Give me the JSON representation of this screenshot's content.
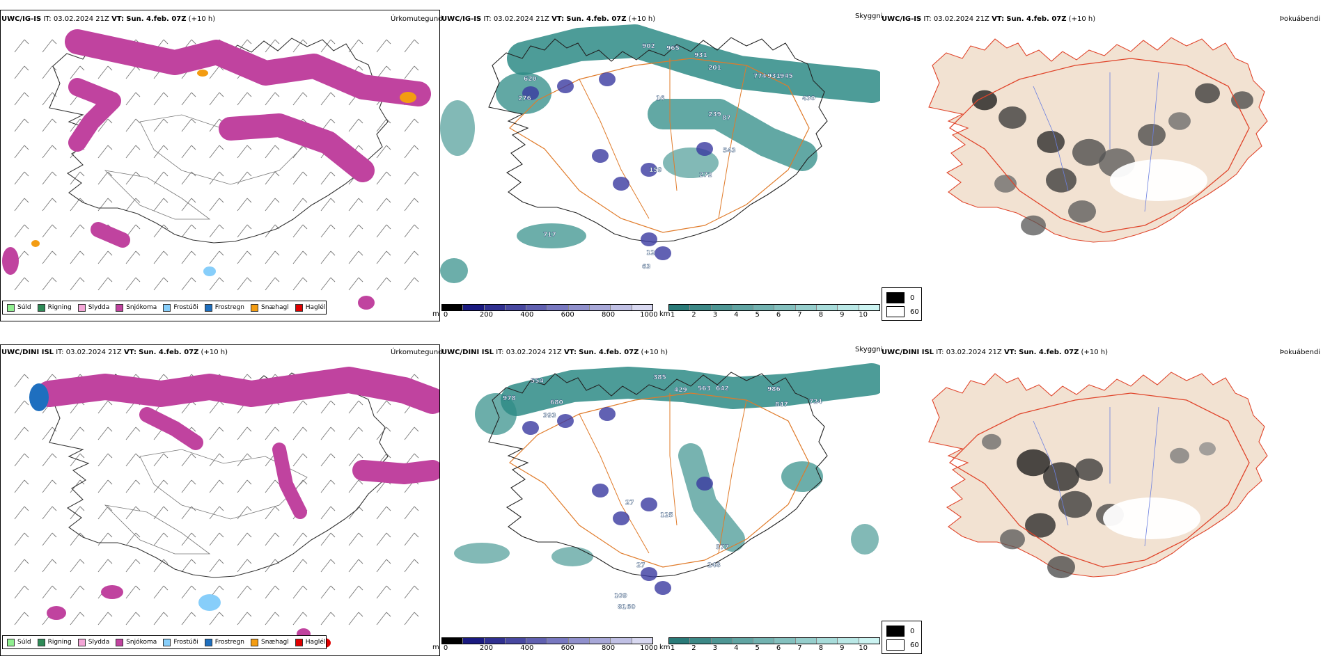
{
  "rows": [
    {
      "model": "UWC/IG-IS",
      "it_prefix": "IT:",
      "it": "03.02.2024 21Z",
      "vt_prefix": "VT:",
      "vt": "Sun. 4.feb. 07Z",
      "lead": "(+10 h)",
      "precip_title": "Úrkomutegund",
      "cloud_title": "Skyggni",
      "fog_title": "Þokuábendi",
      "cloud_labels": [
        "902",
        "965",
        "931",
        "201",
        "774",
        "931",
        "945",
        "620",
        "276",
        "16",
        "239",
        "87",
        "543",
        "159",
        "272",
        "717",
        "12",
        "63",
        "430"
      ]
    },
    {
      "model": "UWC/DINI ISL",
      "it_prefix": "IT:",
      "it": "03.02.2024 21Z",
      "vt_prefix": "VT:",
      "vt": "Sun. 4.feb. 07Z",
      "lead": "(+10 h)",
      "precip_title": "Úrkomutegund",
      "cloud_title": "Skyggni",
      "fog_title": "Þokuábendi",
      "cloud_labels": [
        "554",
        "978",
        "393",
        "680",
        "385",
        "429",
        "563",
        "642",
        "986",
        "847",
        "724",
        "27",
        "125",
        "377",
        "248",
        "60",
        "81",
        "109",
        "27"
      ]
    }
  ],
  "precip_legend": [
    {
      "label": "Súld",
      "color": "#90ee90"
    },
    {
      "label": "Rigning",
      "color": "#2e8b57"
    },
    {
      "label": "Slydda",
      "color": "#f4a6d7"
    },
    {
      "label": "Snjókoma",
      "color": "#c0439f"
    },
    {
      "label": "Frostúði",
      "color": "#87cefa"
    },
    {
      "label": "Frostregn",
      "color": "#1e6fbf"
    },
    {
      "label": "Snæhagl",
      "color": "#f39c12"
    },
    {
      "label": "Haglél",
      "color": "#e00000"
    }
  ],
  "ceiling_scale": {
    "unit": "m",
    "ticks": [
      "0",
      "200",
      "400",
      "600",
      "800",
      "1000"
    ],
    "colors": [
      "#000000",
      "#1a1a80",
      "#303090",
      "#4848a0",
      "#6060b0",
      "#7878c0",
      "#9090cc",
      "#a8a8d8",
      "#c0c0e4",
      "#d8d8f0"
    ]
  },
  "visibility_scale": {
    "unit": "km",
    "ticks": [
      "1",
      "2",
      "3",
      "4",
      "5",
      "6",
      "7",
      "8",
      "9",
      "10"
    ],
    "colors": [
      "#2a7a78",
      "#3c8886",
      "#4e9694",
      "#60a4a2",
      "#72b2b0",
      "#84c0be",
      "#96cecc",
      "#a8dcda",
      "#bae8e6",
      "#ccf4f2"
    ]
  },
  "fog_legend": [
    {
      "label": "0",
      "color": "#000000"
    },
    {
      "label": "60",
      "color": "#ffffff"
    }
  ],
  "colors": {
    "snow": "#c0439f",
    "sleet": "#f39c12",
    "teal": "#2e8b86",
    "road": "#e07b2a",
    "land_fog": "#f2e2d2",
    "fog_road": "#e0442a",
    "river": "#6b7fe0",
    "coast": "#222222"
  }
}
